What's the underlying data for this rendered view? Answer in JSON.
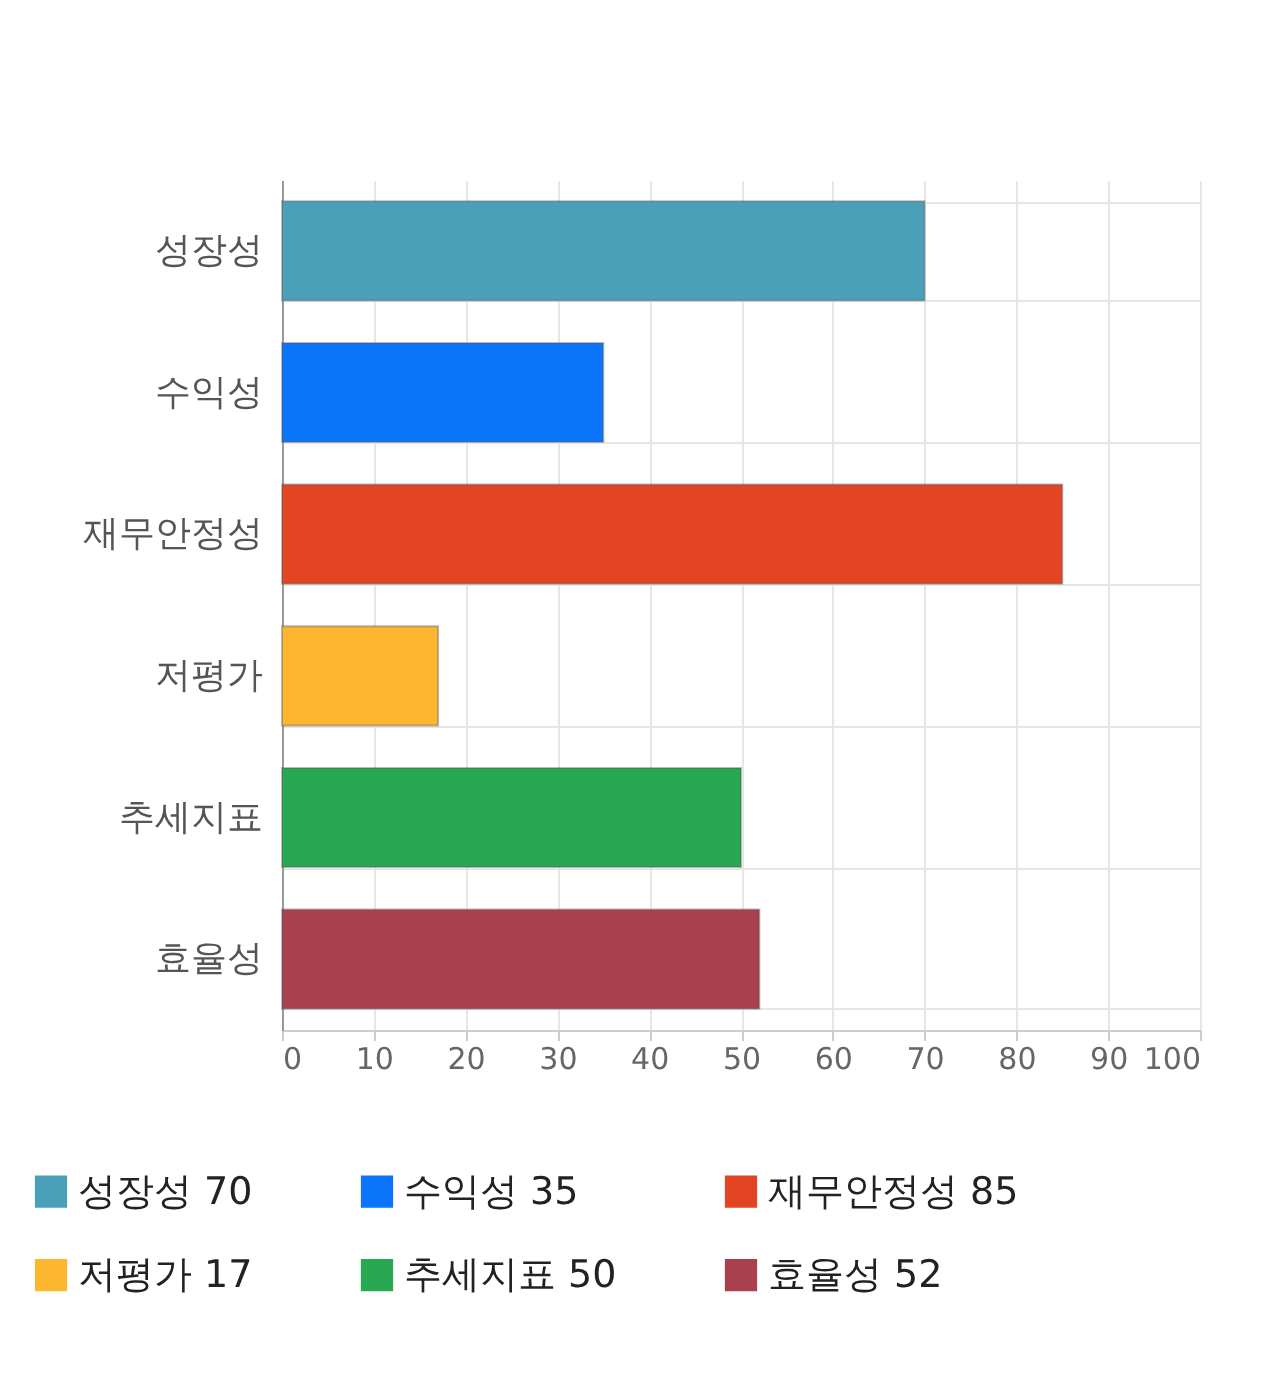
{
  "chart_data": {
    "type": "bar",
    "orientation": "horizontal",
    "categories": [
      "성장성",
      "수익성",
      "재무안정성",
      "저평가",
      "추세지표",
      "효율성"
    ],
    "series": [
      {
        "name": "성장성 70",
        "color": "#4aa0b8",
        "values": [
          70,
          null,
          null,
          null,
          null,
          null
        ]
      },
      {
        "name": "수익성 35",
        "color": "#0a75fa",
        "values": [
          null,
          35,
          null,
          null,
          null,
          null
        ]
      },
      {
        "name": "재무안정성 85",
        "color": "#e34423",
        "values": [
          null,
          null,
          85,
          null,
          null,
          null
        ]
      },
      {
        "name": "저평가 17",
        "color": "#fdb630",
        "values": [
          null,
          null,
          null,
          17,
          null,
          null
        ]
      },
      {
        "name": "추세지표 50",
        "color": "#29a853",
        "values": [
          null,
          null,
          null,
          null,
          50,
          null
        ]
      },
      {
        "name": "효율성 52",
        "color": "#a8404e",
        "values": [
          null,
          null,
          null,
          null,
          null,
          52
        ]
      }
    ],
    "xlim": [
      0,
      100
    ],
    "xticks": [
      0,
      10,
      20,
      30,
      40,
      50,
      60,
      70,
      80,
      90,
      100
    ],
    "grid": true,
    "legend": "bottom"
  }
}
